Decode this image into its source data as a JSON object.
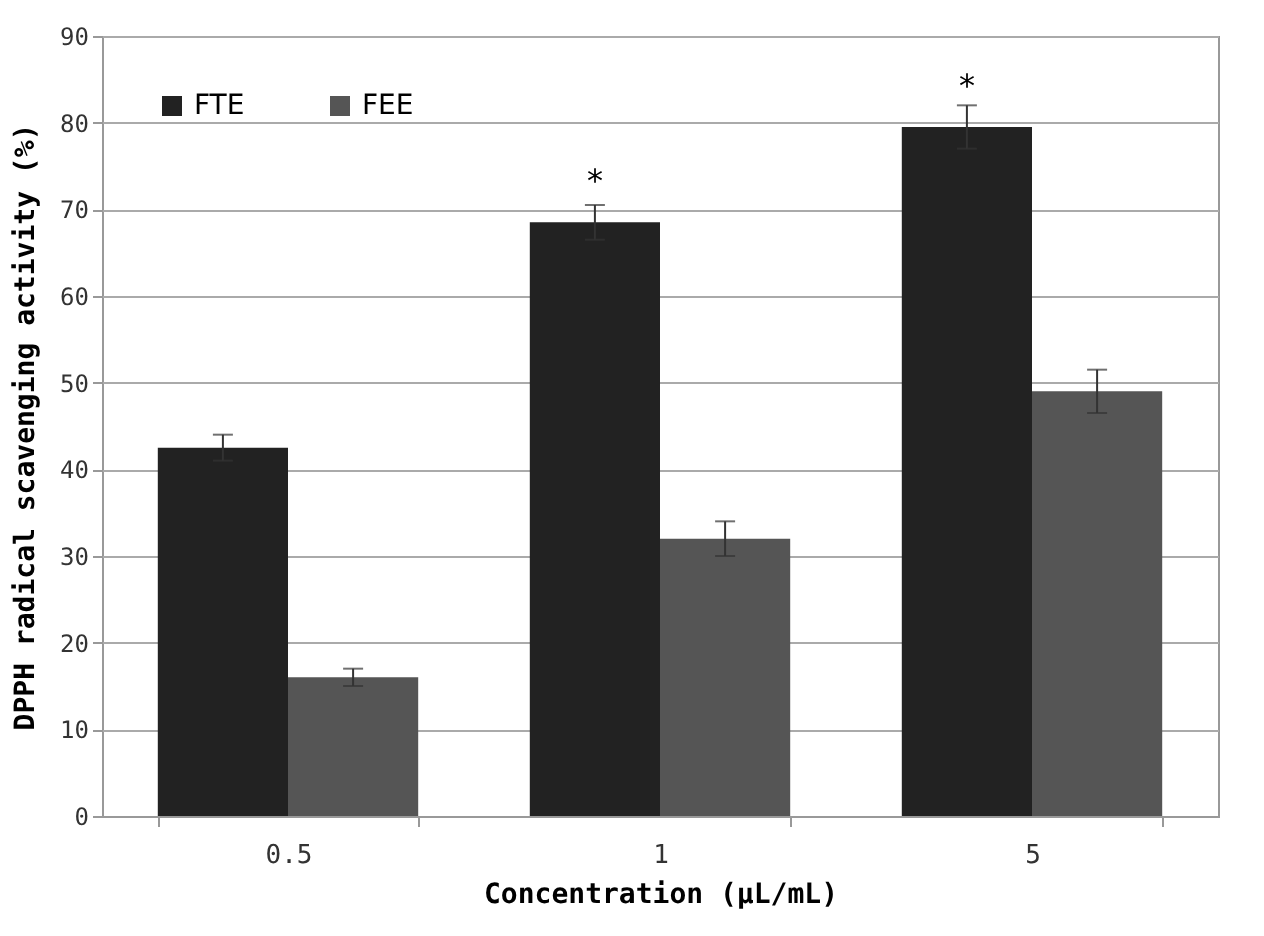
{
  "chart_data": {
    "type": "bar",
    "xlabel": "Concentration (μL/mL)",
    "ylabel": "DPPH radical scavenging activity (%)",
    "categories": [
      "0.5",
      "1",
      "5"
    ],
    "series": [
      {
        "name": "FTE",
        "color": "#222222",
        "values": [
          42.5,
          68.5,
          79.5
        ],
        "errors": [
          1.5,
          2,
          2.5
        ]
      },
      {
        "name": "FEE",
        "color": "#555555",
        "values": [
          16,
          32,
          49
        ],
        "errors": [
          1,
          2,
          2.5
        ]
      }
    ],
    "ylim": [
      0,
      90
    ],
    "yticks": [
      0,
      10,
      20,
      30,
      40,
      50,
      60,
      70,
      80,
      90
    ],
    "grid": "y",
    "legend": "top left",
    "annotations": [
      {
        "text": "*",
        "x": "1",
        "y": 68.5
      },
      {
        "text": "*",
        "x": "5",
        "y": 79.5
      }
    ]
  }
}
